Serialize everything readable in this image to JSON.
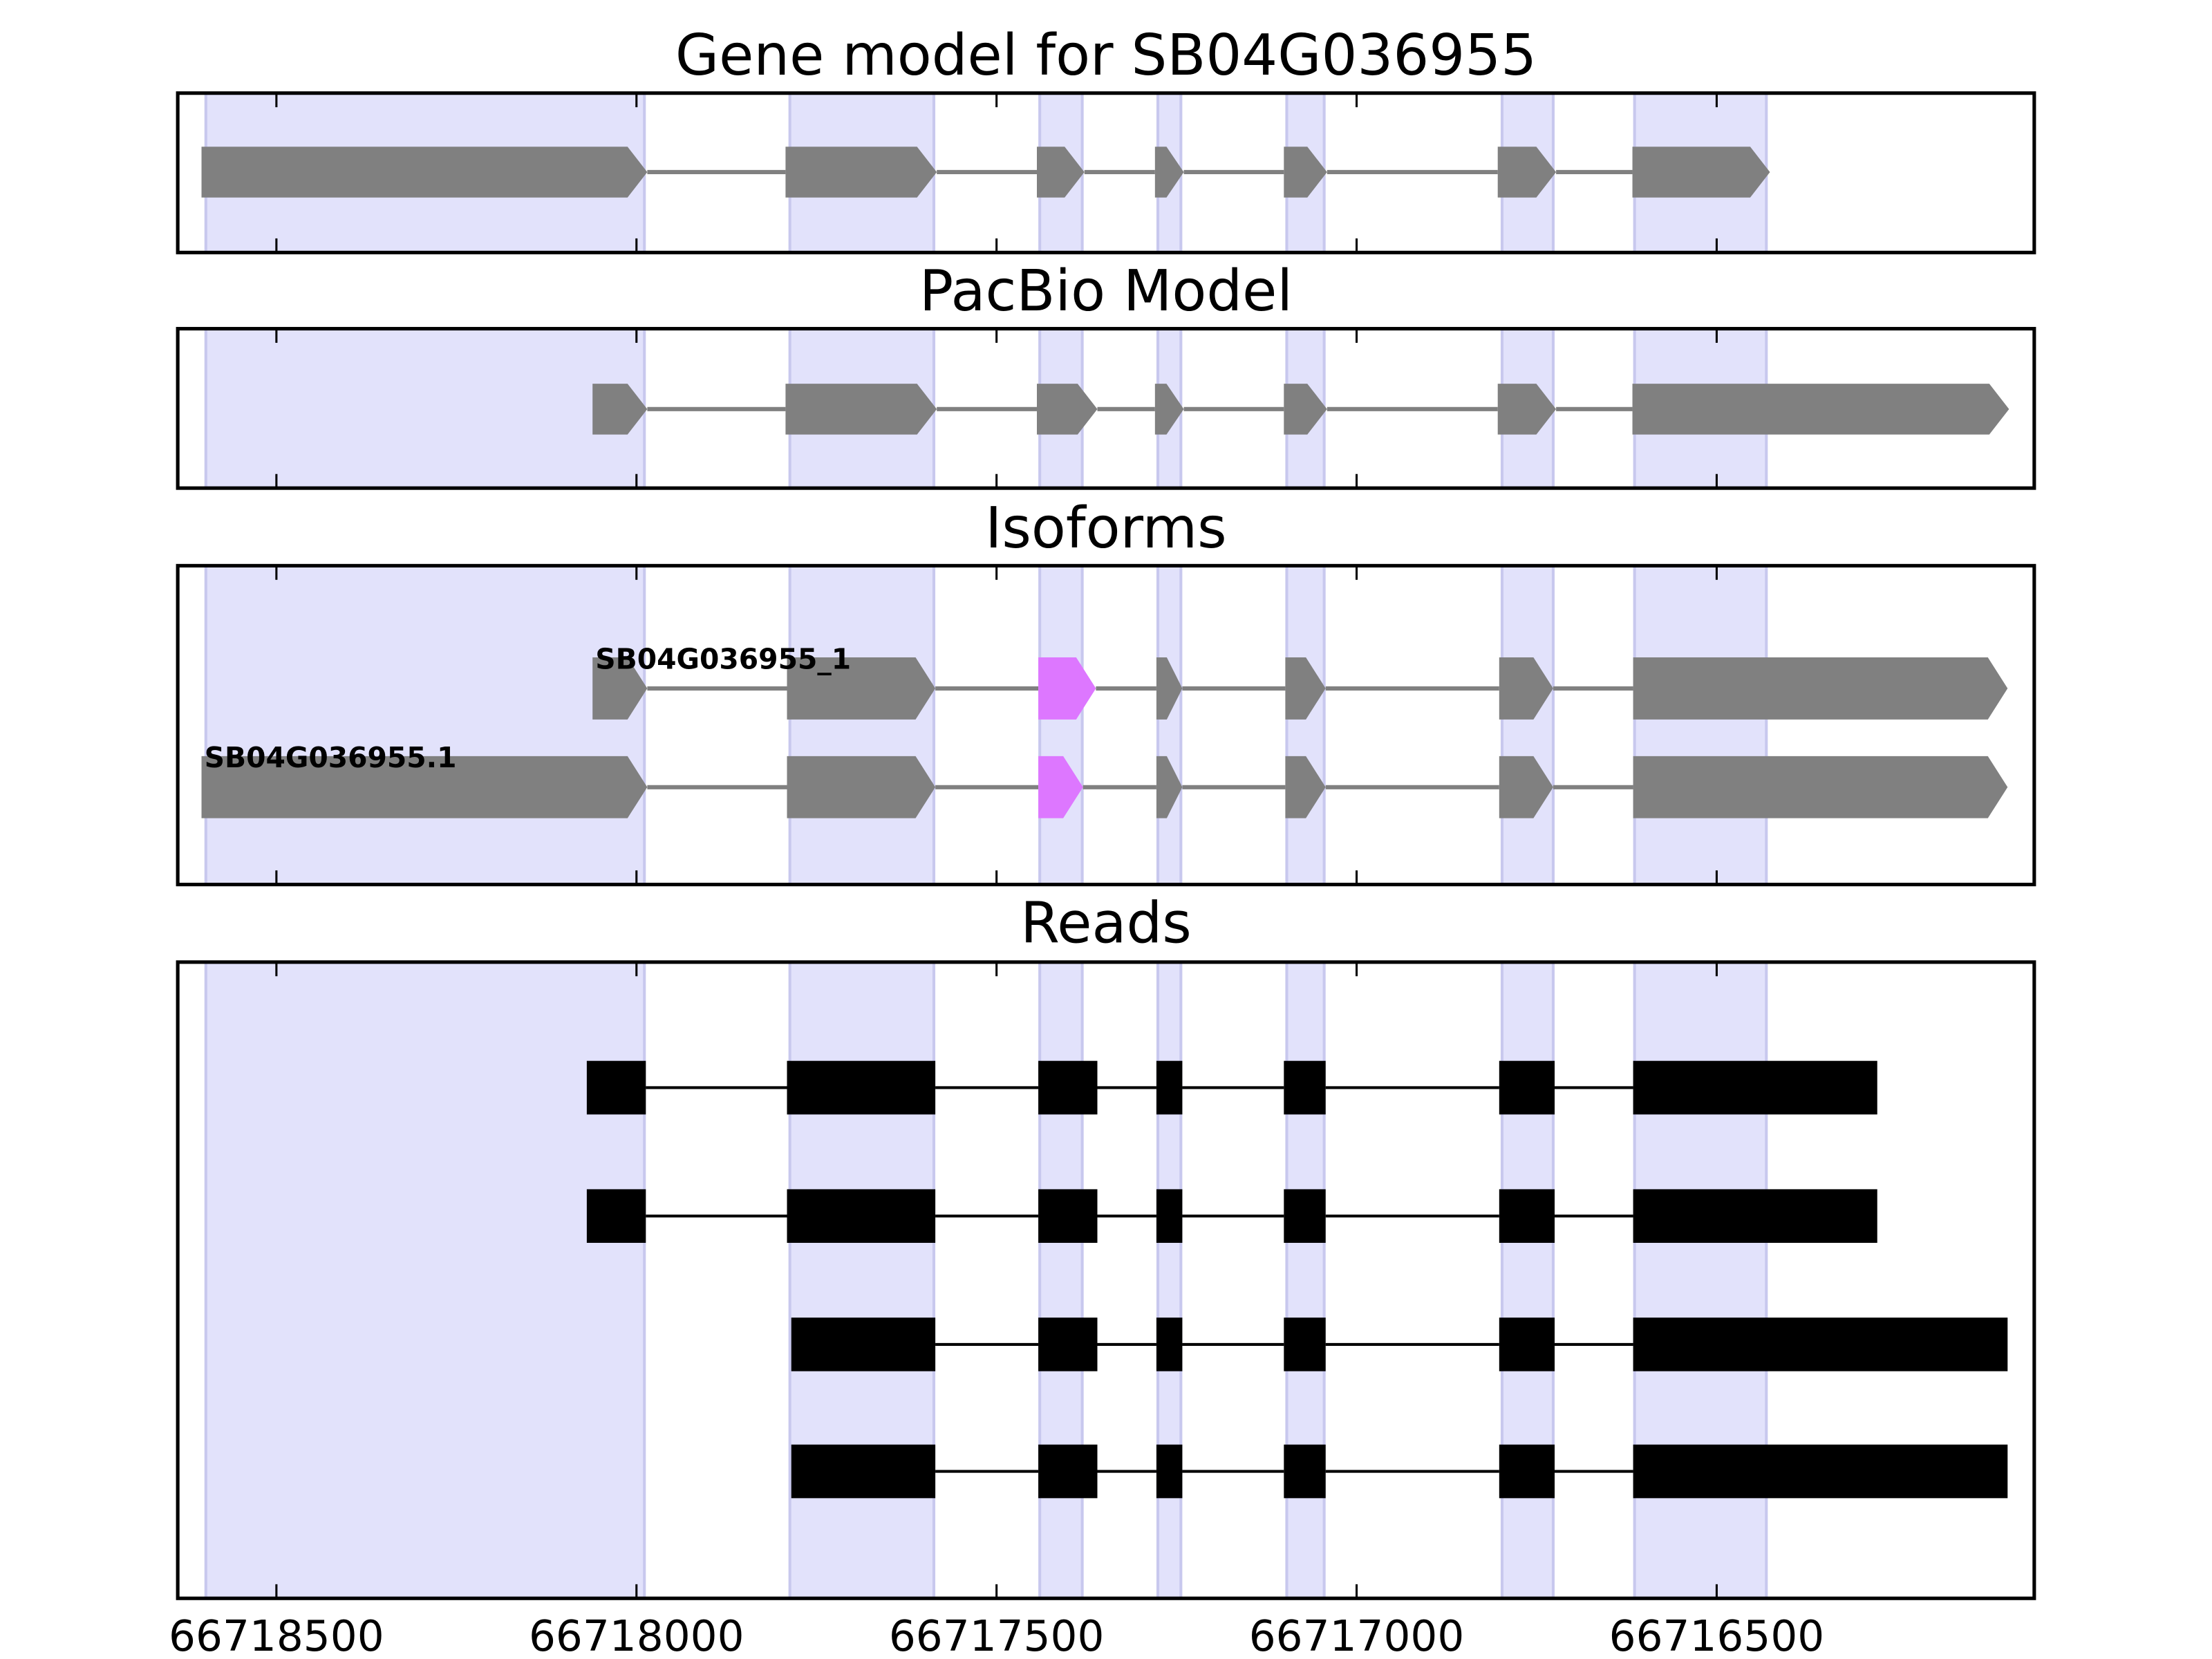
{
  "chart_data": [
    {
      "type": "gene",
      "title": "Gene model for SB04G036955",
      "xlim": [
        66718637,
        66716059
      ],
      "xticks": [
        66718500,
        66718000,
        66717500,
        66717000,
        66716500
      ],
      "highlights": [
        [
          66718598,
          66717989
        ],
        [
          66717787,
          66717587
        ],
        [
          66717440,
          66717381
        ],
        [
          66717276,
          66717244
        ],
        [
          66717097,
          66717045
        ],
        [
          66716798,
          66716727
        ],
        [
          66716614,
          66716431
        ]
      ],
      "highlight_color": "#e2e2fb",
      "shape": "arrow",
      "series": [
        {
          "color": "#808080",
          "exons": [
            [
              66718604,
              66717985
            ],
            [
              66717793,
              66717583
            ],
            [
              66717444,
              66717378
            ],
            [
              66717280,
              66717240
            ],
            [
              66717101,
              66717041
            ],
            [
              66716804,
              66716723
            ],
            [
              66716617,
              66716426
            ]
          ]
        }
      ]
    },
    {
      "type": "gene",
      "title": "PacBio Model",
      "xlim": [
        66718637,
        66716059
      ],
      "xticks": [
        66718500,
        66718000,
        66717500,
        66717000,
        66716500
      ],
      "highlights": [
        [
          66718598,
          66717989
        ],
        [
          66717787,
          66717587
        ],
        [
          66717440,
          66717381
        ],
        [
          66717276,
          66717244
        ],
        [
          66717097,
          66717045
        ],
        [
          66716798,
          66716727
        ],
        [
          66716614,
          66716431
        ]
      ],
      "highlight_color": "#e2e2fb",
      "shape": "arrow",
      "series": [
        {
          "color": "#808080",
          "exons": [
            [
              66718061,
              66717985
            ],
            [
              66717793,
              66717583
            ],
            [
              66717444,
              66717360
            ],
            [
              66717280,
              66717240
            ],
            [
              66717101,
              66717041
            ],
            [
              66716804,
              66716723
            ],
            [
              66716617,
              66716094
            ]
          ]
        }
      ]
    },
    {
      "type": "gene",
      "title": "Isoforms",
      "xlim": [
        66718637,
        66716059
      ],
      "xticks": [
        66718500,
        66718000,
        66717500,
        66717000,
        66716500
      ],
      "highlights": [
        [
          66718598,
          66717989
        ],
        [
          66717787,
          66717587
        ],
        [
          66717440,
          66717381
        ],
        [
          66717276,
          66717244
        ],
        [
          66717097,
          66717045
        ],
        [
          66716798,
          66716727
        ],
        [
          66716614,
          66716431
        ]
      ],
      "highlight_color": "#e2e2fb",
      "shape": "arrow",
      "series": [
        {
          "name": "SB04G036955_1",
          "color": "#808080",
          "accent_exon": 2,
          "accent_color": "#dd77ff",
          "exons": [
            [
              66718061,
              66717985
            ],
            [
              66717791,
              66717585
            ],
            [
              66717442,
              66717362
            ],
            [
              66717278,
              66717242
            ],
            [
              66717099,
              66717043
            ],
            [
              66716802,
              66716727
            ],
            [
              66716616,
              66716096
            ]
          ]
        },
        {
          "name": "SB04G036955.1",
          "color": "#808080",
          "accent_exon": 2,
          "accent_color": "#dd77ff",
          "exons": [
            [
              66718604,
              66717985
            ],
            [
              66717791,
              66717585
            ],
            [
              66717442,
              66717380
            ],
            [
              66717278,
              66717242
            ],
            [
              66717099,
              66717043
            ],
            [
              66716802,
              66716727
            ],
            [
              66716616,
              66716096
            ]
          ]
        }
      ]
    },
    {
      "type": "gene",
      "title": "Reads",
      "xlim": [
        66718637,
        66716059
      ],
      "xticks": [
        66718500,
        66718000,
        66717500,
        66717000,
        66716500
      ],
      "highlights": [
        [
          66718598,
          66717989
        ],
        [
          66717787,
          66717587
        ],
        [
          66717440,
          66717381
        ],
        [
          66717276,
          66717244
        ],
        [
          66717097,
          66717045
        ],
        [
          66716798,
          66716727
        ],
        [
          66716614,
          66716431
        ]
      ],
      "highlight_color": "#e2e2fb",
      "shape": "box",
      "series": [
        {
          "color": "#000000",
          "exons": [
            [
              66718069,
              66717987
            ],
            [
              66717791,
              66717585
            ],
            [
              66717442,
              66717360
            ],
            [
              66717278,
              66717242
            ],
            [
              66717101,
              66717043
            ],
            [
              66716802,
              66716725
            ],
            [
              66716616,
              66716277
            ]
          ]
        },
        {
          "color": "#000000",
          "exons": [
            [
              66718069,
              66717987
            ],
            [
              66717791,
              66717585
            ],
            [
              66717442,
              66717360
            ],
            [
              66717278,
              66717242
            ],
            [
              66717101,
              66717043
            ],
            [
              66716802,
              66716725
            ],
            [
              66716616,
              66716277
            ]
          ]
        },
        {
          "color": "#000000",
          "exons": [
            [
              66717785,
              66717585
            ],
            [
              66717442,
              66717360
            ],
            [
              66717278,
              66717242
            ],
            [
              66717101,
              66717043
            ],
            [
              66716802,
              66716725
            ],
            [
              66716616,
              66716096
            ]
          ]
        },
        {
          "color": "#000000",
          "exons": [
            [
              66717785,
              66717585
            ],
            [
              66717442,
              66717360
            ],
            [
              66717278,
              66717242
            ],
            [
              66717101,
              66717043
            ],
            [
              66716802,
              66716725
            ],
            [
              66716616,
              66716096
            ]
          ]
        }
      ]
    }
  ]
}
